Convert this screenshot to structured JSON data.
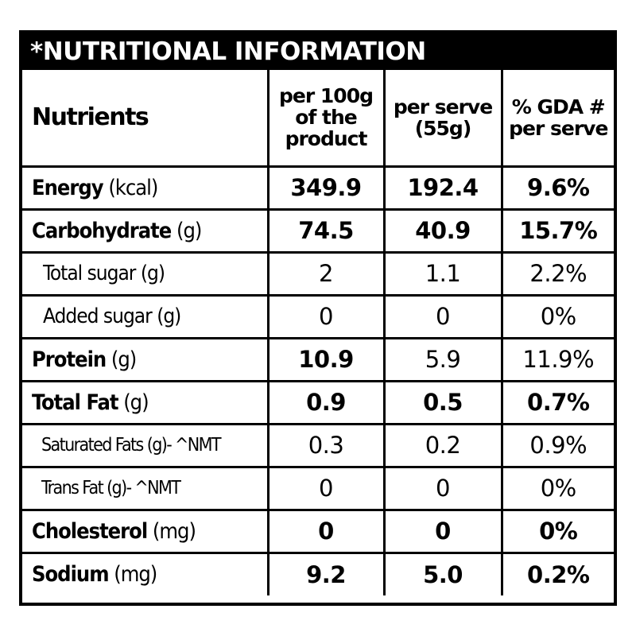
{
  "title": "*NUTRITIONAL INFORMATION",
  "headers": {
    "nutrients": "Nutrients",
    "per100": "per 100g of the product",
    "perServe": "per serve (55g)",
    "gda": "% GDA # per serve"
  },
  "rows": [
    {
      "name": "Energy",
      "unit": "(kcal)",
      "per100": "349.9",
      "perServe": "192.4",
      "gda": "9.6%"
    },
    {
      "name": "Carbohydrate",
      "unit": "(g)",
      "per100": "74.5",
      "perServe": "40.9",
      "gda": "15.7%"
    },
    {
      "name": "Total sugar",
      "unit": "(g)",
      "per100": "2",
      "perServe": "1.1",
      "gda": "2.2%"
    },
    {
      "name": "Added sugar",
      "unit": "(g)",
      "per100": "0",
      "perServe": "0",
      "gda": "0%"
    },
    {
      "name": "Protein",
      "unit": "(g)",
      "per100": "10.9",
      "perServe": "5.9",
      "gda": "11.9%"
    },
    {
      "name": "Total Fat",
      "unit": "(g)",
      "per100": "0.9",
      "perServe": "0.5",
      "gda": "0.7%"
    },
    {
      "name": "Saturated Fats",
      "unit": "(g)- ^NMT",
      "per100": "0.3",
      "perServe": "0.2",
      "gda": "0.9%"
    },
    {
      "name": "Trans Fat",
      "unit": "(g)- ^NMT",
      "per100": "0",
      "perServe": "0",
      "gda": "0%"
    },
    {
      "name": "Cholesterol",
      "unit": "(mg)",
      "per100": "0",
      "perServe": "0",
      "gda": "0%"
    },
    {
      "name": "Sodium",
      "unit": "(mg)",
      "per100": "9.2",
      "perServe": "5.0",
      "gda": "0.2%"
    }
  ]
}
